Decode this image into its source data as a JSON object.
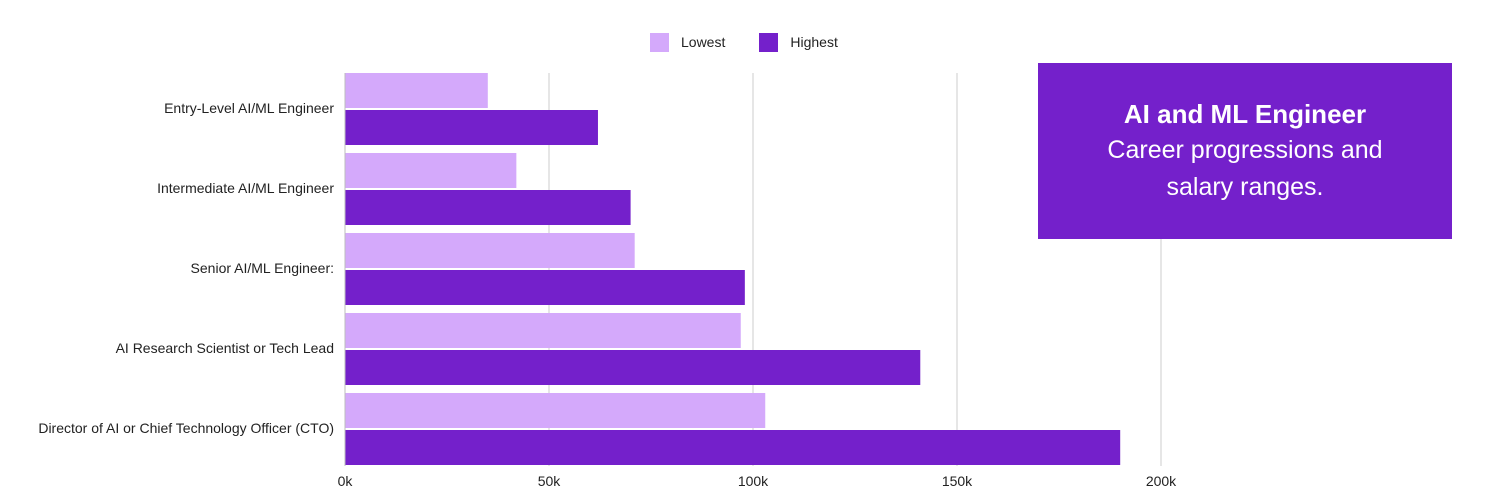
{
  "title_card": {
    "title": "AI and ML Engineer",
    "subtitle": "Career progressions and salary ranges."
  },
  "chart_data": {
    "type": "bar",
    "orientation": "horizontal",
    "categories": [
      "Entry-Level AI/ML Engineer",
      "Intermediate AI/ML Engineer",
      "Senior AI/ML Engineer:",
      "AI Research Scientist or Tech Lead",
      "Director of AI or Chief Technology Officer (CTO)"
    ],
    "series": [
      {
        "name": "Lowest",
        "color": "#d4a9fb",
        "values": [
          35000,
          42000,
          71000,
          97000,
          103000
        ]
      },
      {
        "name": "Highest",
        "color": "#7420cb",
        "values": [
          62000,
          70000,
          98000,
          141000,
          190000
        ]
      }
    ],
    "x_ticks": [
      0,
      50000,
      100000,
      150000,
      200000
    ],
    "x_tick_labels": [
      "0k",
      "50k",
      "100k",
      "150k",
      "200k"
    ],
    "xlim": [
      0,
      200000
    ],
    "grid": true,
    "legend": "top-center"
  }
}
